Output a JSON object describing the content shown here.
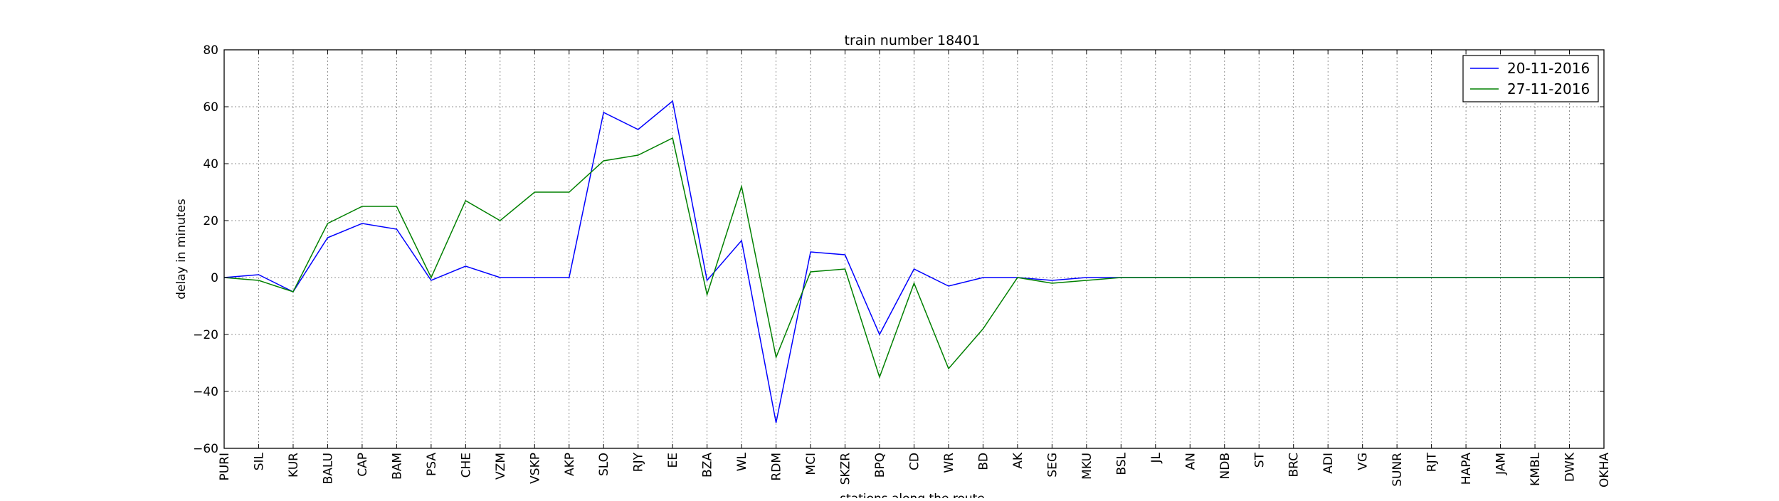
{
  "chart_data": {
    "type": "line",
    "title": "train number 18401",
    "xlabel": "stations along the route",
    "ylabel": "delay in minutes",
    "ylim": [
      -60,
      80
    ],
    "yticks": [
      -60,
      -40,
      -20,
      0,
      20,
      40,
      60,
      80
    ],
    "ytick_labels": [
      "−60",
      "−40",
      "−20",
      "0",
      "20",
      "40",
      "60",
      "80"
    ],
    "grid": true,
    "legend_position": "top-right",
    "categories": [
      "PURI",
      "SIL",
      "KUR",
      "BALU",
      "CAP",
      "BAM",
      "PSA",
      "CHE",
      "VZM",
      "VSKP",
      "AKP",
      "SLO",
      "RJY",
      "EE",
      "BZA",
      "WL",
      "RDM",
      "MCI",
      "SKZR",
      "BPQ",
      "CD",
      "WR",
      "BD",
      "AK",
      "SEG",
      "MKU",
      "BSL",
      "JL",
      "AN",
      "NDB",
      "ST",
      "BRC",
      "ADI",
      "VG",
      "SUNR",
      "RJT",
      "HAPA",
      "JAM",
      "KMBL",
      "DWK",
      "OKHA"
    ],
    "series": [
      {
        "name": "20-11-2016",
        "color": "#0000ff",
        "values": [
          0,
          1,
          -5,
          14,
          19,
          17,
          -1,
          4,
          0,
          0,
          0,
          58,
          52,
          62,
          -1,
          13,
          -51,
          9,
          8,
          -20,
          3,
          -3,
          0,
          0,
          -1,
          0,
          0,
          0,
          0,
          0,
          0,
          0,
          0,
          0,
          0,
          0,
          0,
          0,
          0,
          0,
          0
        ]
      },
      {
        "name": "27-11-2016",
        "color": "#008000",
        "values": [
          0,
          -1,
          -5,
          19,
          25,
          25,
          0,
          27,
          20,
          30,
          30,
          41,
          43,
          49,
          -6,
          32,
          -28,
          2,
          3,
          -35,
          -2,
          -32,
          -18,
          0,
          -2,
          -1,
          0,
          0,
          0,
          0,
          0,
          0,
          0,
          0,
          0,
          0,
          0,
          0,
          0,
          0,
          0
        ]
      }
    ]
  }
}
